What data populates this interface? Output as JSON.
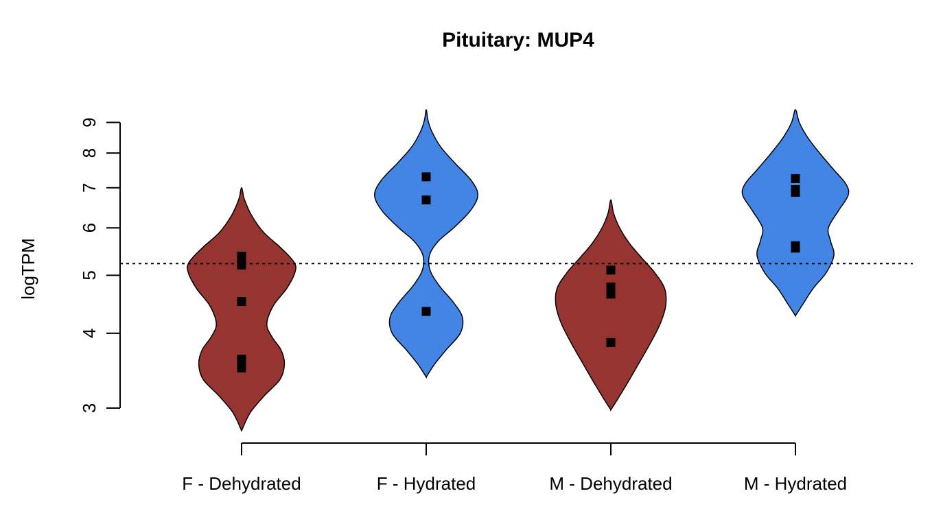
{
  "chart_data": {
    "type": "violin",
    "title": "Pituitary: MUP4",
    "xlabel": "",
    "ylabel": "logTPM",
    "y_scale": "log",
    "ylim": [
      2.75,
      9.6
    ],
    "y_ticks": [
      3,
      4,
      5,
      6,
      7,
      8,
      9
    ],
    "reference_line": {
      "y": 5.23,
      "style": "dotted"
    },
    "grid": false,
    "colors": {
      "Dehydrated": "#963431",
      "Hydrated": "#4285e4"
    },
    "categories": [
      "F - Dehydrated",
      "F - Hydrated",
      "M - Dehydrated",
      "M - Hydrated"
    ],
    "groups": [
      {
        "label": "F - Dehydrated",
        "color": "#963431",
        "range": [
          2.75,
          7.0
        ],
        "density": [
          [
            2.75,
            0.0
          ],
          [
            2.95,
            0.16
          ],
          [
            3.15,
            0.42
          ],
          [
            3.35,
            0.7
          ],
          [
            3.55,
            0.78
          ],
          [
            3.75,
            0.72
          ],
          [
            3.95,
            0.55
          ],
          [
            4.15,
            0.46
          ],
          [
            4.45,
            0.58
          ],
          [
            4.75,
            0.82
          ],
          [
            5.05,
            0.97
          ],
          [
            5.25,
            0.96
          ],
          [
            5.55,
            0.72
          ],
          [
            5.9,
            0.4
          ],
          [
            6.3,
            0.18
          ],
          [
            6.7,
            0.05
          ],
          [
            7.0,
            0.0
          ]
        ],
        "points": [
          5.38,
          5.28,
          5.2,
          4.52,
          3.62,
          3.55,
          3.5
        ]
      },
      {
        "label": "F - Hydrated",
        "color": "#4285e4",
        "range": [
          3.38,
          9.45
        ],
        "density": [
          [
            3.38,
            0.0
          ],
          [
            3.55,
            0.15
          ],
          [
            3.75,
            0.36
          ],
          [
            4.0,
            0.62
          ],
          [
            4.25,
            0.66
          ],
          [
            4.5,
            0.5
          ],
          [
            4.8,
            0.24
          ],
          [
            5.1,
            0.07
          ],
          [
            5.4,
            0.06
          ],
          [
            5.7,
            0.22
          ],
          [
            6.0,
            0.5
          ],
          [
            6.4,
            0.8
          ],
          [
            6.8,
            0.94
          ],
          [
            7.2,
            0.82
          ],
          [
            7.7,
            0.52
          ],
          [
            8.2,
            0.26
          ],
          [
            8.7,
            0.1
          ],
          [
            9.1,
            0.03
          ],
          [
            9.45,
            0.0
          ]
        ],
        "points": [
          7.3,
          6.68,
          4.35
        ]
      },
      {
        "label": "M - Dehydrated",
        "color": "#963431",
        "range": [
          2.98,
          6.68
        ],
        "density": [
          [
            2.98,
            0.0
          ],
          [
            3.1,
            0.12
          ],
          [
            3.3,
            0.3
          ],
          [
            3.55,
            0.5
          ],
          [
            3.85,
            0.72
          ],
          [
            4.15,
            0.9
          ],
          [
            4.45,
            1.0
          ],
          [
            4.75,
            0.98
          ],
          [
            5.05,
            0.8
          ],
          [
            5.35,
            0.56
          ],
          [
            5.65,
            0.34
          ],
          [
            6.0,
            0.16
          ],
          [
            6.35,
            0.05
          ],
          [
            6.68,
            0.0
          ]
        ],
        "points": [
          5.1,
          4.78,
          4.72,
          4.65,
          3.86
        ]
      },
      {
        "label": "M - Hydrated",
        "color": "#4285e4",
        "range": [
          4.28,
          9.45
        ],
        "density": [
          [
            4.28,
            0.0
          ],
          [
            4.45,
            0.12
          ],
          [
            4.75,
            0.32
          ],
          [
            5.05,
            0.56
          ],
          [
            5.4,
            0.7
          ],
          [
            5.7,
            0.64
          ],
          [
            6.0,
            0.6
          ],
          [
            6.4,
            0.78
          ],
          [
            6.8,
            0.96
          ],
          [
            7.1,
            0.92
          ],
          [
            7.5,
            0.7
          ],
          [
            8.0,
            0.44
          ],
          [
            8.5,
            0.22
          ],
          [
            9.0,
            0.07
          ],
          [
            9.45,
            0.0
          ]
        ],
        "points": [
          7.25,
          6.95,
          6.88,
          5.6,
          5.55
        ]
      }
    ]
  }
}
